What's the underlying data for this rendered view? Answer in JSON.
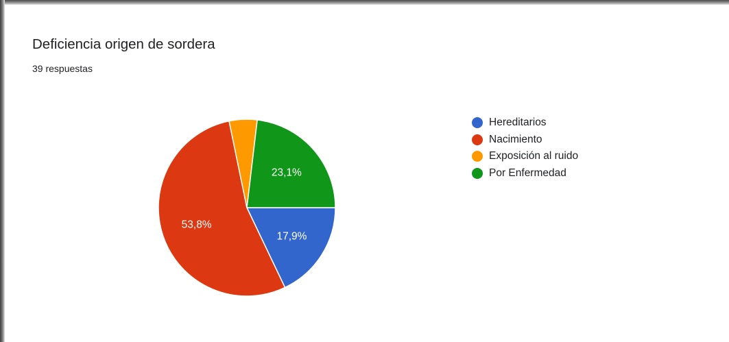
{
  "title": "Deficiencia origen de sordera",
  "subtitle": "39 respuestas",
  "chart_data": {
    "type": "pie",
    "title": "Deficiencia origen de sordera",
    "subtitle": "39 respuestas",
    "categories": [
      "Hereditarios",
      "Nacimiento",
      "Exposición al ruido",
      "Por Enfermedad"
    ],
    "values": [
      17.9,
      53.8,
      5.1,
      23.1
    ],
    "data_labels": [
      "17,9%",
      "53,8%",
      "",
      "23,1%"
    ],
    "colors": [
      "#3366cc",
      "#dc3912",
      "#ff9900",
      "#109618"
    ],
    "legend_position": "right"
  }
}
